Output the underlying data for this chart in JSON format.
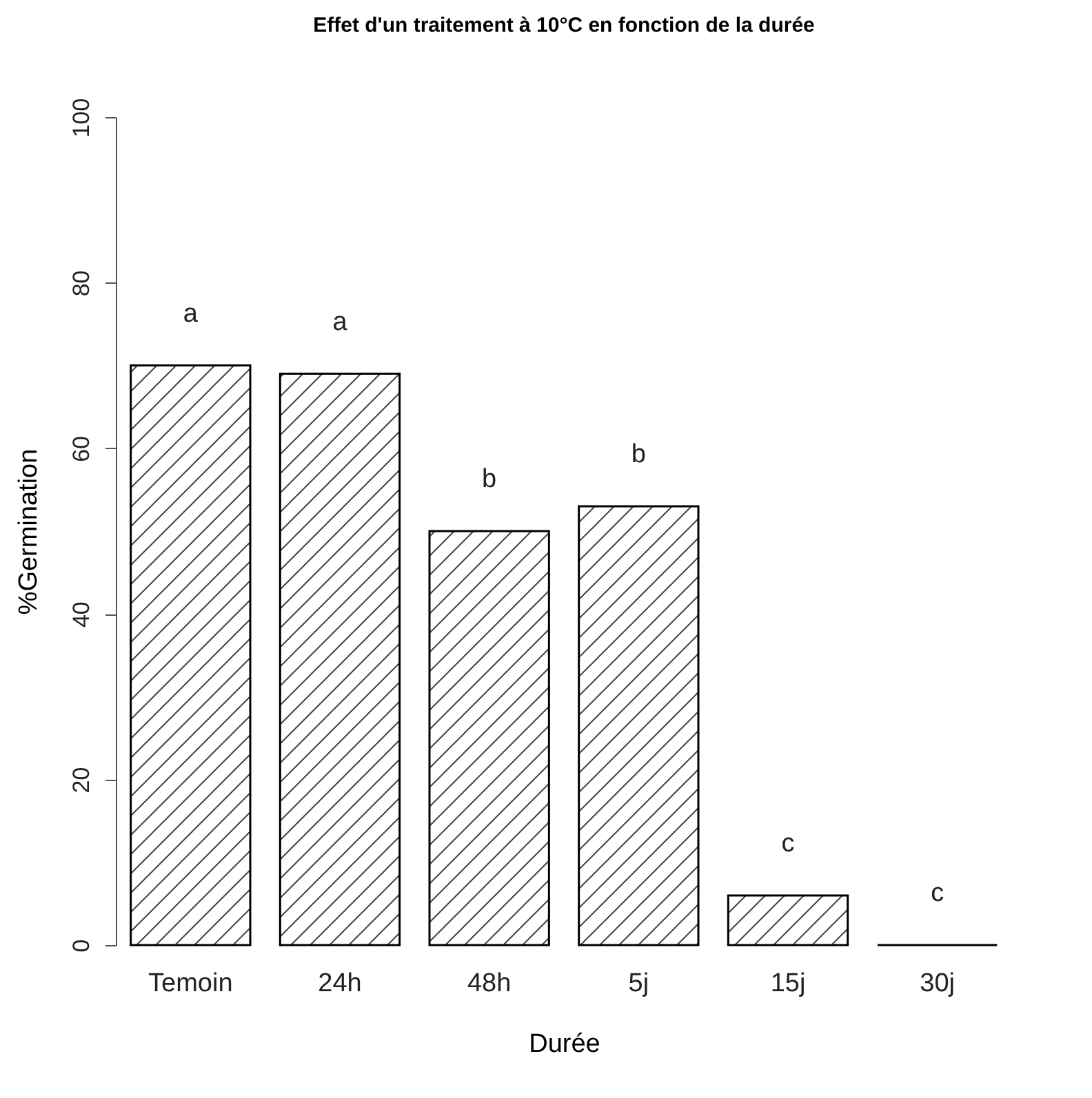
{
  "chart_data": {
    "type": "bar",
    "title": "Effet d'un traitement à 10°C en fonction de la durée",
    "xlabel": "Durée",
    "ylabel": "%Germination",
    "categories": [
      "Temoin",
      "24h",
      "48h",
      "5j",
      "15j",
      "30j"
    ],
    "values": [
      70,
      69,
      50,
      53,
      6,
      0
    ],
    "ylim": [
      0,
      100
    ],
    "yticks": [
      0,
      20,
      40,
      60,
      80,
      100
    ],
    "annotations": [
      {
        "text": "a",
        "x": "Temoin",
        "y": 70
      },
      {
        "text": "a",
        "x": "24h",
        "y": 69
      },
      {
        "text": "b",
        "x": "48h",
        "y": 50
      },
      {
        "text": "b",
        "x": "5j",
        "y": 53
      },
      {
        "text": "c",
        "x": "15j",
        "y": 6
      },
      {
        "text": "c",
        "x": "30j",
        "y": 0
      }
    ]
  }
}
